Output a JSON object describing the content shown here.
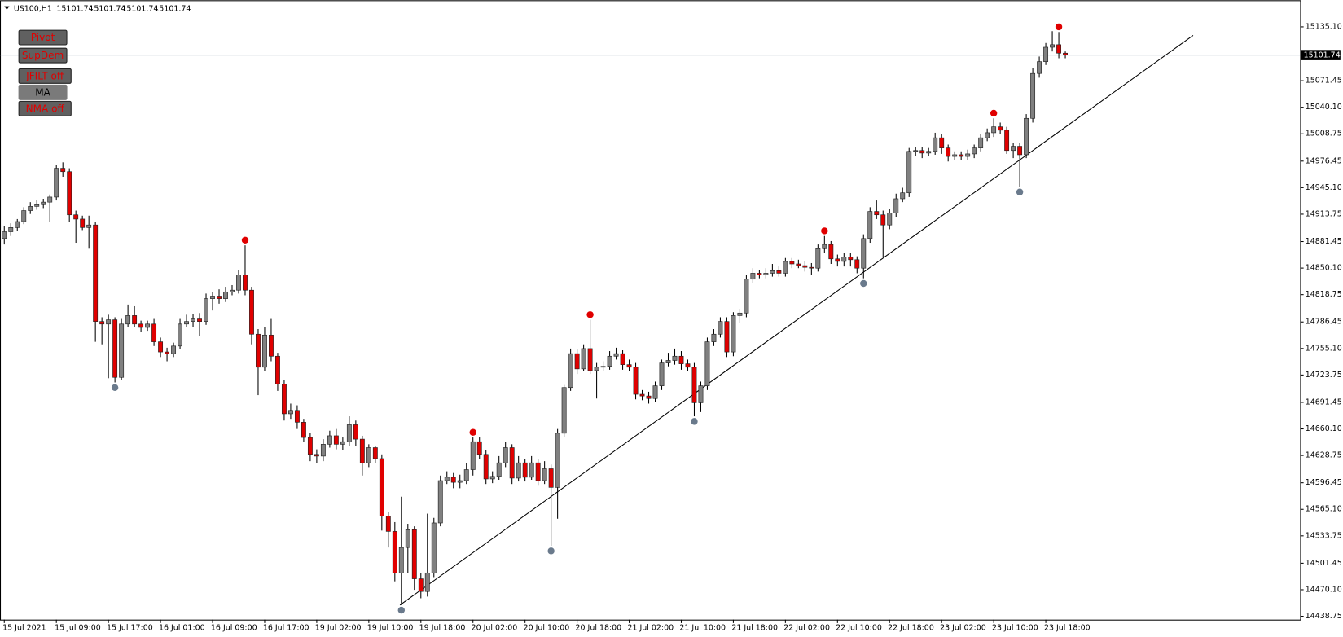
{
  "chart_data": {
    "type": "candlestick",
    "symbol": "US100,H1",
    "quote": [
      15101.74,
      15101.74,
      15101.74,
      15101.74
    ],
    "buttons": [
      "Pivot",
      "SupDem",
      "JFILT off",
      "MA",
      "NMA off"
    ],
    "current_price": 15101.74,
    "up_color": "#808080",
    "down_color": "#e00000",
    "pivot_high_color": "#e00000",
    "pivot_low_color": "#6a7a8c",
    "ylim": [
      14434.8,
      15166.5
    ],
    "yticks": [
      {
        "value": 15135.1,
        "label": "15135.10"
      },
      15071.45,
      {
        "value": 15040.1,
        "label": "15040.10"
      },
      15008.75,
      14976.45,
      {
        "value": 14945.1,
        "label": "14945.10"
      },
      14913.75,
      14881.45,
      {
        "value": 14850.1,
        "label": "14850.10"
      },
      14818.75,
      14786.45,
      {
        "value": 14755.1,
        "label": "14755.10"
      },
      14723.75,
      14691.45,
      {
        "value": 14660.1,
        "label": "14660.10"
      },
      14628.75,
      14596.45,
      {
        "value": 14565.1,
        "label": "14565.10"
      },
      14533.75,
      14501.45,
      {
        "value": 14470.1,
        "label": "14470.10"
      },
      14438.75
    ],
    "categories": [
      "15 Jul 2021",
      null,
      null,
      null,
      null,
      null,
      null,
      null,
      "15 Jul 09:00",
      null,
      null,
      null,
      null,
      null,
      null,
      null,
      "15 Jul 17:00",
      null,
      null,
      null,
      null,
      null,
      null,
      null,
      "16 Jul 01:00",
      null,
      null,
      null,
      null,
      null,
      null,
      null,
      "16 Jul 09:00",
      null,
      null,
      null,
      null,
      null,
      null,
      null,
      "16 Jul 17:00",
      null,
      null,
      null,
      null,
      null,
      null,
      null,
      "19 Jul 02:00",
      null,
      null,
      null,
      null,
      null,
      null,
      null,
      "19 Jul 10:00",
      null,
      null,
      null,
      null,
      null,
      null,
      null,
      "19 Jul 18:00",
      null,
      null,
      null,
      null,
      null,
      null,
      null,
      "20 Jul 02:00",
      null,
      null,
      null,
      null,
      null,
      null,
      null,
      "20 Jul 10:00",
      null,
      null,
      null,
      null,
      null,
      null,
      null,
      "20 Jul 18:00",
      null,
      null,
      null,
      null,
      null,
      null,
      null,
      "21 Jul 02:00",
      null,
      null,
      null,
      null,
      null,
      null,
      null,
      "21 Jul 10:00",
      null,
      null,
      null,
      null,
      null,
      null,
      null,
      "21 Jul 18:00",
      null,
      null,
      null,
      null,
      null,
      null,
      null,
      "22 Jul 02:00",
      null,
      null,
      null,
      null,
      null,
      null,
      null,
      "22 Jul 10:00",
      null,
      null,
      null,
      null,
      null,
      null,
      null,
      "22 Jul 18:00",
      null,
      null,
      null,
      null,
      null,
      null,
      null,
      "23 Jul 02:00",
      null,
      null,
      null,
      null,
      null,
      null,
      null,
      "23 Jul 10:00",
      null,
      null,
      null,
      null,
      null,
      null,
      null,
      "23 Jul 18:00",
      null,
      null,
      null
    ],
    "pivot_highs": [
      37,
      72,
      90,
      126,
      152,
      162
    ],
    "pivot_lows": [
      17,
      61,
      84,
      106,
      132,
      156
    ],
    "candles": [
      [
        14885,
        14900,
        14878,
        14893
      ],
      [
        14893,
        14903,
        14888,
        14898
      ],
      [
        14898,
        14908,
        14894,
        14905
      ],
      [
        14905,
        14922,
        14902,
        14918
      ],
      [
        14918,
        14928,
        14914,
        14923
      ],
      [
        14923,
        14930,
        14919,
        14925
      ],
      [
        14925,
        14932,
        14921,
        14928
      ],
      [
        14928,
        14937,
        14905,
        14934
      ],
      [
        14934,
        14972,
        14930,
        14968
      ],
      [
        14968,
        14975,
        14958,
        14964
      ],
      [
        14964,
        14968,
        14905,
        14913
      ],
      [
        14913,
        14918,
        14880,
        14908
      ],
      [
        14908,
        14912,
        14895,
        14898
      ],
      [
        14898,
        14912,
        14873,
        14901
      ],
      [
        14901,
        14905,
        14763,
        14787
      ],
      [
        14787,
        14792,
        14760,
        14784
      ],
      [
        14784,
        14795,
        14720,
        14789
      ],
      [
        14789,
        14792,
        14715,
        14721
      ],
      [
        14721,
        14790,
        14718,
        14784
      ],
      [
        14784,
        14807,
        14780,
        14794
      ],
      [
        14794,
        14805,
        14780,
        14784
      ],
      [
        14784,
        14788,
        14775,
        14780
      ],
      [
        14780,
        14788,
        14776,
        14784
      ],
      [
        14784,
        14790,
        14758,
        14763
      ],
      [
        14763,
        14768,
        14745,
        14751
      ],
      [
        14751,
        14756,
        14740,
        14749
      ],
      [
        14749,
        14762,
        14745,
        14758
      ],
      [
        14758,
        14790,
        14754,
        14784
      ],
      [
        14784,
        14795,
        14780,
        14787
      ],
      [
        14787,
        14796,
        14780,
        14790
      ],
      [
        14790,
        14797,
        14770,
        14787
      ],
      [
        14787,
        14820,
        14783,
        14814
      ],
      [
        14814,
        14822,
        14800,
        14817
      ],
      [
        14817,
        14825,
        14808,
        14814
      ],
      [
        14814,
        14828,
        14810,
        14822
      ],
      [
        14822,
        14830,
        14818,
        14824
      ],
      [
        14824,
        14848,
        14820,
        14842
      ],
      [
        14842,
        14877,
        14818,
        14824
      ],
      [
        14824,
        14828,
        14760,
        14772
      ],
      [
        14772,
        14778,
        14700,
        14733
      ],
      [
        14733,
        14780,
        14728,
        14771
      ],
      [
        14771,
        14790,
        14740,
        14746
      ],
      [
        14746,
        14750,
        14705,
        14713
      ],
      [
        14713,
        14718,
        14670,
        14678
      ],
      [
        14678,
        14690,
        14672,
        14682
      ],
      [
        14682,
        14688,
        14660,
        14668
      ],
      [
        14668,
        14672,
        14645,
        14650
      ],
      [
        14650,
        14655,
        14622,
        14630
      ],
      [
        14630,
        14636,
        14620,
        14628
      ],
      [
        14628,
        14648,
        14622,
        14642
      ],
      [
        14642,
        14658,
        14638,
        14652
      ],
      [
        14652,
        14660,
        14636,
        14642
      ],
      [
        14642,
        14650,
        14635,
        14645
      ],
      [
        14645,
        14675,
        14640,
        14665
      ],
      [
        14665,
        14670,
        14640,
        14648
      ],
      [
        14648,
        14652,
        14605,
        14620
      ],
      [
        14620,
        14642,
        14615,
        14638
      ],
      [
        14638,
        14640,
        14620,
        14625
      ],
      [
        14625,
        14630,
        14540,
        14557
      ],
      [
        14557,
        14562,
        14520,
        14539
      ],
      [
        14539,
        14550,
        14480,
        14490
      ],
      [
        14490,
        14580,
        14452,
        14520
      ],
      [
        14520,
        14548,
        14490,
        14541
      ],
      [
        14541,
        14545,
        14470,
        14483
      ],
      [
        14483,
        14490,
        14460,
        14468
      ],
      [
        14468,
        14560,
        14462,
        14490
      ],
      [
        14490,
        14555,
        14485,
        14549
      ],
      [
        14549,
        14605,
        14545,
        14599
      ],
      [
        14599,
        14610,
        14595,
        14603
      ],
      [
        14603,
        14608,
        14590,
        14597
      ],
      [
        14597,
        14606,
        14590,
        14599
      ],
      [
        14599,
        14620,
        14595,
        14612
      ],
      [
        14612,
        14650,
        14605,
        14645
      ],
      [
        14645,
        14650,
        14625,
        14630
      ],
      [
        14630,
        14635,
        14595,
        14601
      ],
      [
        14601,
        14610,
        14596,
        14604
      ],
      [
        14604,
        14628,
        14600,
        14620
      ],
      [
        14620,
        14645,
        14615,
        14638
      ],
      [
        14638,
        14642,
        14595,
        14602
      ],
      [
        14602,
        14628,
        14598,
        14620
      ],
      [
        14620,
        14625,
        14598,
        14603
      ],
      [
        14603,
        14628,
        14600,
        14620
      ],
      [
        14620,
        14625,
        14593,
        14599
      ],
      [
        14599,
        14622,
        14595,
        14613
      ],
      [
        14613,
        14618,
        14522,
        14591
      ],
      [
        14591,
        14660,
        14554,
        14655
      ],
      [
        14655,
        14712,
        14650,
        14709
      ],
      [
        14709,
        14755,
        14705,
        14749
      ],
      [
        14749,
        14754,
        14725,
        14731
      ],
      [
        14731,
        14760,
        14728,
        14755
      ],
      [
        14755,
        14789,
        14725,
        14729
      ],
      [
        14729,
        14738,
        14696,
        14733
      ],
      [
        14733,
        14740,
        14728,
        14734
      ],
      [
        14734,
        14752,
        14730,
        14746
      ],
      [
        14746,
        14756,
        14742,
        14749
      ],
      [
        14749,
        14753,
        14730,
        14736
      ],
      [
        14736,
        14742,
        14728,
        14733
      ],
      [
        14733,
        14738,
        14695,
        14701
      ],
      [
        14701,
        14706,
        14694,
        14699
      ],
      [
        14699,
        14704,
        14690,
        14696
      ],
      [
        14696,
        14716,
        14692,
        14711
      ],
      [
        14711,
        14742,
        14706,
        14738
      ],
      [
        14738,
        14750,
        14734,
        14741
      ],
      [
        14741,
        14755,
        14736,
        14746
      ],
      [
        14746,
        14752,
        14730,
        14737
      ],
      [
        14737,
        14742,
        14728,
        14733
      ],
      [
        14733,
        14738,
        14675,
        14691
      ],
      [
        14691,
        14716,
        14680,
        14711
      ],
      [
        14711,
        14768,
        14706,
        14763
      ],
      [
        14763,
        14778,
        14758,
        14772
      ],
      [
        14772,
        14792,
        14768,
        14787
      ],
      [
        14787,
        14792,
        14745,
        14751
      ],
      [
        14751,
        14798,
        14746,
        14794
      ],
      [
        14794,
        14802,
        14785,
        14797
      ],
      [
        14797,
        14842,
        14792,
        14837
      ],
      [
        14837,
        14850,
        14832,
        14844
      ],
      [
        14844,
        14848,
        14838,
        14842
      ],
      [
        14842,
        14850,
        14838,
        14844
      ],
      [
        14844,
        14855,
        14840,
        14847
      ],
      [
        14847,
        14852,
        14840,
        14844
      ],
      [
        14844,
        14862,
        14840,
        14858
      ],
      [
        14858,
        14862,
        14850,
        14855
      ],
      [
        14855,
        14860,
        14850,
        14853
      ],
      [
        14853,
        14858,
        14846,
        14851
      ],
      [
        14851,
        14856,
        14842,
        14850
      ],
      [
        14850,
        14878,
        14846,
        14873
      ],
      [
        14873,
        14888,
        14868,
        14878
      ],
      [
        14878,
        14882,
        14855,
        14861
      ],
      [
        14861,
        14866,
        14852,
        14858
      ],
      [
        14858,
        14868,
        14852,
        14863
      ],
      [
        14863,
        14868,
        14852,
        14860
      ],
      [
        14860,
        14864,
        14844,
        14850
      ],
      [
        14850,
        14890,
        14838,
        14885
      ],
      [
        14885,
        14922,
        14880,
        14917
      ],
      [
        14917,
        14930,
        14908,
        14913
      ],
      [
        14913,
        14918,
        14863,
        14901
      ],
      [
        14901,
        14920,
        14896,
        14915
      ],
      [
        14915,
        14938,
        14910,
        14932
      ],
      [
        14932,
        14945,
        14928,
        14939
      ],
      [
        14939,
        14992,
        14934,
        14988
      ],
      [
        14988,
        14993,
        14983,
        14989
      ],
      [
        14989,
        14993,
        14980,
        14986
      ],
      [
        14986,
        14992,
        14982,
        14988
      ],
      [
        14988,
        15010,
        14984,
        15004
      ],
      [
        15004,
        15008,
        14985,
        14992
      ],
      [
        14992,
        14996,
        14976,
        14982
      ],
      [
        14982,
        14988,
        14978,
        14984
      ],
      [
        14984,
        14988,
        14978,
        14982
      ],
      [
        14982,
        14990,
        14978,
        14985
      ],
      [
        14985,
        14996,
        14980,
        14992
      ],
      [
        14992,
        15008,
        14988,
        15004
      ],
      [
        15004,
        15015,
        15000,
        15010
      ],
      [
        15010,
        15027,
        15005,
        15017
      ],
      [
        15017,
        15022,
        15008,
        15013
      ],
      [
        15013,
        15017,
        14985,
        14989
      ],
      [
        14989,
        14998,
        14980,
        14994
      ],
      [
        14994,
        14998,
        14946,
        14984
      ],
      [
        14984,
        15032,
        14980,
        15027
      ],
      [
        15027,
        15086,
        15022,
        15080
      ],
      [
        15080,
        15100,
        15075,
        15094
      ],
      [
        15094,
        15116,
        15090,
        15111
      ],
      [
        15111,
        15130,
        15106,
        15114
      ],
      [
        15114,
        15129,
        15098,
        15104
      ],
      [
        15104,
        15106,
        15098,
        15101.74
      ]
    ]
  }
}
